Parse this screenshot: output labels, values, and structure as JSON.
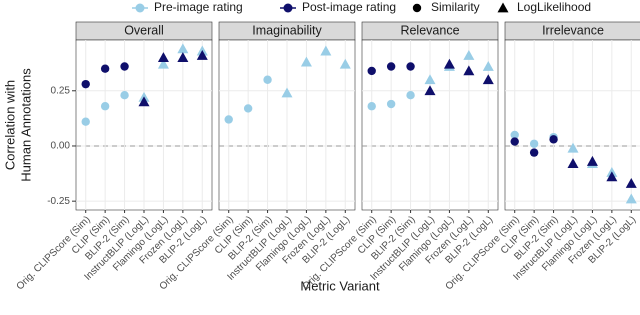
{
  "chart_data": {
    "type": "scatter",
    "x_label": "Metric Variant",
    "y_label": [
      "Correlation with",
      "Human Annotations"
    ],
    "facets": [
      "Overall",
      "Imaginability",
      "Relevance",
      "Irrelevance"
    ],
    "categories": [
      "Orig. CLIPScore (Sim)",
      "CLIP (Sim)",
      "BLIP-2 (Sim)",
      "InstructBLIP (LogL)",
      "Flamingo (LogL)",
      "Frozen (LogL)",
      "BLIP-2 (LogL)"
    ],
    "shapes": [
      "Similarity",
      "Similarity",
      "Similarity",
      "LogLikelihood",
      "LogLikelihood",
      "LogLikelihood",
      "LogLikelihood"
    ],
    "shape_legend": [
      {
        "name": "Similarity",
        "marker": "circle"
      },
      {
        "name": "LogLikelihood",
        "marker": "triangle"
      }
    ],
    "series": [
      {
        "name": "Pre-image rating",
        "color": "#99cde6",
        "values": [
          [
            0.11,
            0.18,
            0.23,
            0.22,
            0.37,
            0.44,
            0.43
          ],
          [
            0.12,
            0.17,
            0.3,
            0.24,
            0.38,
            0.43,
            0.37
          ],
          [
            0.18,
            0.19,
            0.23,
            0.3,
            0.36,
            0.41,
            0.36
          ],
          [
            0.05,
            0.01,
            0.04,
            -0.01,
            -0.08,
            -0.12,
            -0.24
          ]
        ]
      },
      {
        "name": "Post-image rating",
        "color": "#0f0f6b",
        "values": [
          [
            0.28,
            0.35,
            0.36,
            0.2,
            0.4,
            0.4,
            0.41
          ],
          [
            null,
            null,
            null,
            null,
            null,
            null,
            null
          ],
          [
            0.34,
            0.36,
            0.36,
            0.25,
            0.37,
            0.34,
            0.3
          ],
          [
            0.02,
            -0.03,
            0.03,
            -0.08,
            -0.07,
            -0.14,
            -0.17
          ]
        ]
      }
    ],
    "ylim": [
      -0.29,
      0.48
    ],
    "yticks": [
      {
        "value": -0.25,
        "label": "-0.25"
      },
      {
        "value": 0,
        "label": "0.00"
      },
      {
        "value": 0.25,
        "label": "0.25"
      }
    ],
    "zero_line": true,
    "grid": true
  }
}
